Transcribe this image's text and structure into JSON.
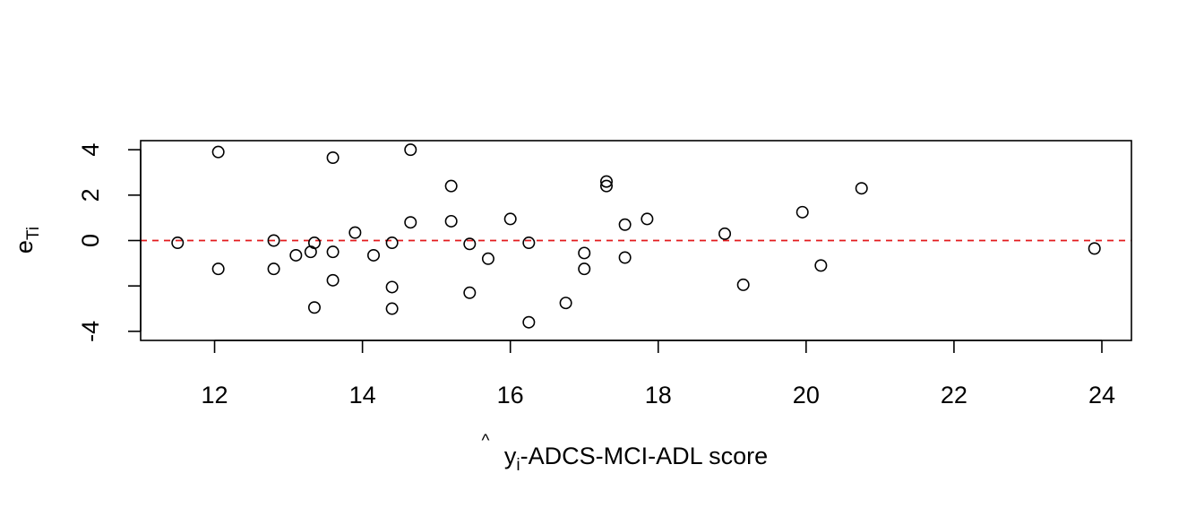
{
  "chart_data": {
    "type": "scatter",
    "title": "",
    "xlabel": {
      "y_symbol": "y",
      "hat": "^",
      "subscript": "i",
      "rest": "-ADCS-MCI-ADL score"
    },
    "ylabel": {
      "base": "e",
      "subscript": "Ti"
    },
    "xlim": [
      11,
      24.4
    ],
    "ylim": [
      -4.4,
      4.4
    ],
    "x_ticks": [
      12,
      14,
      16,
      18,
      20,
      22,
      24
    ],
    "x_tick_labels": [
      "12",
      "14",
      "16",
      "18",
      "20",
      "22",
      "24"
    ],
    "y_ticks": [
      -4,
      -2,
      0,
      2,
      4
    ],
    "y_tick_labels": [
      "-4",
      "",
      "0",
      "2",
      "4"
    ],
    "reference_line": {
      "y": 0,
      "color": "#e31a1c",
      "style": "dashed"
    },
    "grid": false,
    "point_style": "open-circle",
    "points": [
      {
        "x": 11.5,
        "y": -0.1
      },
      {
        "x": 12.05,
        "y": 3.9
      },
      {
        "x": 12.05,
        "y": -1.25
      },
      {
        "x": 12.8,
        "y": 0.0
      },
      {
        "x": 12.8,
        "y": -1.25
      },
      {
        "x": 13.1,
        "y": -0.65
      },
      {
        "x": 13.3,
        "y": -0.5
      },
      {
        "x": 13.35,
        "y": -0.1
      },
      {
        "x": 13.35,
        "y": -2.95
      },
      {
        "x": 13.6,
        "y": 3.65
      },
      {
        "x": 13.6,
        "y": -0.5
      },
      {
        "x": 13.6,
        "y": -1.75
      },
      {
        "x": 13.9,
        "y": 0.35
      },
      {
        "x": 14.15,
        "y": -0.65
      },
      {
        "x": 14.4,
        "y": -0.1
      },
      {
        "x": 14.4,
        "y": -2.05
      },
      {
        "x": 14.4,
        "y": -3.0
      },
      {
        "x": 14.65,
        "y": 4.0
      },
      {
        "x": 14.65,
        "y": 0.8
      },
      {
        "x": 15.2,
        "y": 2.4
      },
      {
        "x": 15.2,
        "y": 0.85
      },
      {
        "x": 15.45,
        "y": -0.15
      },
      {
        "x": 15.45,
        "y": -2.3
      },
      {
        "x": 15.7,
        "y": -0.8
      },
      {
        "x": 16.0,
        "y": 0.95
      },
      {
        "x": 16.25,
        "y": -0.1
      },
      {
        "x": 16.25,
        "y": -3.6
      },
      {
        "x": 16.75,
        "y": -2.75
      },
      {
        "x": 17.0,
        "y": -0.55
      },
      {
        "x": 17.0,
        "y": -1.25
      },
      {
        "x": 17.3,
        "y": 2.6
      },
      {
        "x": 17.3,
        "y": 2.4
      },
      {
        "x": 17.55,
        "y": 0.7
      },
      {
        "x": 17.55,
        "y": -0.75
      },
      {
        "x": 17.85,
        "y": 0.95
      },
      {
        "x": 18.9,
        "y": 0.3
      },
      {
        "x": 19.15,
        "y": -1.95
      },
      {
        "x": 19.95,
        "y": 1.25
      },
      {
        "x": 20.2,
        "y": -1.1
      },
      {
        "x": 20.75,
        "y": 2.3
      },
      {
        "x": 23.9,
        "y": -0.35
      }
    ]
  }
}
